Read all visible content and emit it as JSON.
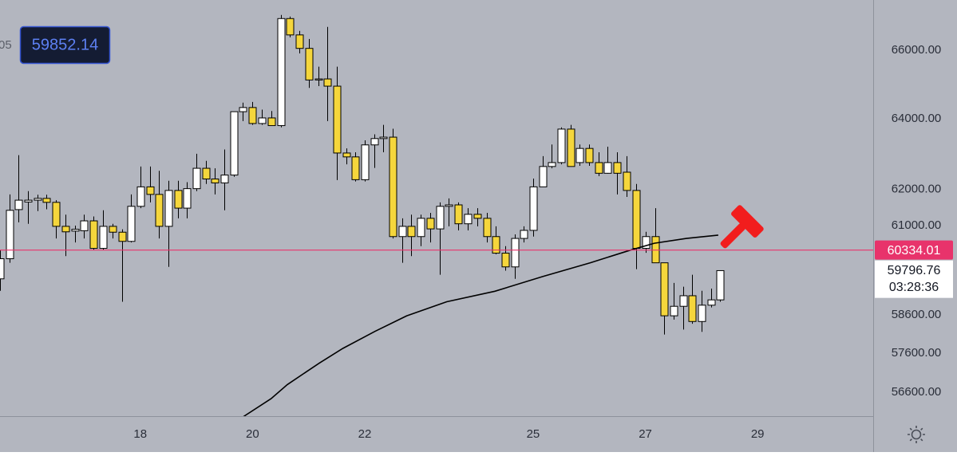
{
  "chart_data": {
    "type": "candlestick",
    "log_scale": true,
    "up_color": "#ffffff",
    "down_color": "#f5d63c",
    "edge_color": "#000000",
    "x": [
      15.5,
      15.67,
      15.83,
      16,
      16.17,
      16.33,
      16.5,
      16.67,
      16.83,
      17,
      17.17,
      17.33,
      17.5,
      17.67,
      17.83,
      18,
      18.17,
      18.33,
      18.5,
      18.67,
      18.83,
      19,
      19.17,
      19.33,
      19.5,
      19.67,
      19.83,
      20,
      20.17,
      20.33,
      20.5,
      20.67,
      20.83,
      21,
      21.17,
      21.33,
      21.5,
      21.67,
      21.83,
      22,
      22.17,
      22.33,
      22.5,
      22.67,
      22.83,
      23,
      23.17,
      23.33,
      23.5,
      23.67,
      23.83,
      24,
      24.17,
      24.33,
      24.5,
      24.67,
      24.83,
      25,
      25.17,
      25.33,
      25.5,
      25.67,
      25.83,
      26,
      26.17,
      26.33,
      26.5,
      26.67,
      26.83,
      27,
      27.17,
      27.33,
      27.5,
      27.67,
      27.83,
      28,
      28.17,
      28.33
    ],
    "open": [
      59560,
      60100,
      61440,
      61650,
      61700,
      61750,
      61640,
      60980,
      60850,
      60860,
      61130,
      60380,
      60980,
      60820,
      60570,
      61530,
      62070,
      61860,
      60980,
      61970,
      61480,
      62020,
      62590,
      62290,
      62180,
      62400,
      64200,
      64320,
      63860,
      64020,
      63800,
      66940,
      66450,
      66050,
      65120,
      65150,
      64940,
      63020,
      62910,
      62270,
      63250,
      63430,
      63470,
      60700,
      60980,
      60700,
      61200,
      60910,
      61530,
      61570,
      61050,
      61310,
      61200,
      60700,
      60250,
      59880,
      60650,
      60870,
      62070,
      62640,
      62750,
      63700,
      62750,
      63150,
      62750,
      62450,
      62750,
      62480,
      61970,
      60380,
      60700,
      59990,
      58580,
      58830,
      59110,
      58430,
      58860,
      59000
    ],
    "high": [
      60330,
      61860,
      62960,
      61950,
      61850,
      61850,
      61700,
      61300,
      61000,
      61300,
      61250,
      61420,
      61050,
      60900,
      61860,
      62640,
      62640,
      62520,
      62240,
      62240,
      62200,
      63000,
      62800,
      62590,
      63120,
      64200,
      64460,
      64480,
      64260,
      64220,
      67050,
      67000,
      66570,
      66330,
      65510,
      66690,
      65510,
      63150,
      63040,
      63380,
      63550,
      63820,
      63710,
      61200,
      61300,
      61300,
      61350,
      61640,
      61750,
      61640,
      61480,
      61480,
      61350,
      60980,
      60440,
      60760,
      60980,
      62300,
      62930,
      63260,
      63750,
      63820,
      63260,
      63260,
      63040,
      63200,
      63040,
      62930,
      62150,
      60830,
      61480,
      59990,
      59450,
      59350,
      59670,
      59240,
      59300,
      59780
    ],
    "low": [
      59240,
      59990,
      61090,
      61050,
      61400,
      61450,
      60650,
      60170,
      60540,
      60650,
      60330,
      60330,
      60650,
      58950,
      60540,
      61480,
      61640,
      60650,
      59880,
      61200,
      61200,
      61950,
      62150,
      61860,
      61420,
      62350,
      63930,
      63820,
      63820,
      63820,
      63750,
      66380,
      65900,
      64890,
      64940,
      63930,
      62260,
      62700,
      62220,
      62220,
      62600,
      63040,
      60650,
      59990,
      60170,
      60440,
      60540,
      59670,
      60980,
      60870,
      60870,
      60980,
      60540,
      60220,
      59780,
      59560,
      60540,
      60700,
      62070,
      62590,
      62700,
      62660,
      62660,
      62660,
      62370,
      62440,
      61860,
      61790,
      59820,
      60260,
      59990,
      58090,
      58480,
      58220,
      58370,
      58160,
      58800,
      58950
    ],
    "close": [
      60100,
      61420,
      61700,
      61700,
      61750,
      61640,
      60980,
      60830,
      60900,
      61130,
      60380,
      60980,
      60820,
      60570,
      61530,
      62070,
      61860,
      60980,
      61970,
      61480,
      62020,
      62590,
      62290,
      62180,
      62400,
      64200,
      64320,
      63860,
      64020,
      63800,
      66940,
      66450,
      66050,
      65120,
      65150,
      64940,
      63020,
      62910,
      62270,
      63250,
      63430,
      63470,
      60700,
      60980,
      60700,
      61200,
      60910,
      61530,
      61570,
      61050,
      61310,
      61200,
      60700,
      60250,
      59880,
      60650,
      60870,
      62070,
      62640,
      62750,
      63700,
      62640,
      63150,
      62750,
      62450,
      62750,
      62450,
      61970,
      60380,
      60700,
      59990,
      58580,
      58830,
      59110,
      58430,
      58860,
      59000,
      59780
    ],
    "moving_average": {
      "color": "#000000",
      "x": [
        19.84,
        20.33,
        20.62,
        21.19,
        21.61,
        22.18,
        22.75,
        23.46,
        24.32,
        25.17,
        26.02,
        26.73,
        27.16,
        27.73,
        28.3
      ],
      "values": [
        55990,
        56440,
        56800,
        57350,
        57730,
        58170,
        58580,
        58950,
        59230,
        59620,
        59990,
        60330,
        60520,
        60650,
        60740
      ]
    },
    "price_line": {
      "value": 60334.01,
      "color": "#e8336b"
    },
    "last_price": 59796.76,
    "countdown": "03:28:36",
    "crosshair_price": 59852.14,
    "left_clipped_text": "05",
    "xlim": [
      15.5,
      31.06
    ],
    "xticks": [
      18,
      20,
      22,
      25,
      27,
      29
    ],
    "ylim": [
      56000,
      67500
    ],
    "yticks": [
      {
        "value": 66000,
        "label": "66000.00"
      },
      {
        "value": 64000,
        "label": "64000.00"
      },
      {
        "value": 62000,
        "label": "62000.00"
      },
      {
        "value": 61000,
        "label": "61000.00"
      },
      {
        "value": 58600,
        "label": "58600.00"
      },
      {
        "value": 57600,
        "label": "57600.00"
      },
      {
        "value": 56600,
        "label": "56600.00"
      }
    ]
  }
}
